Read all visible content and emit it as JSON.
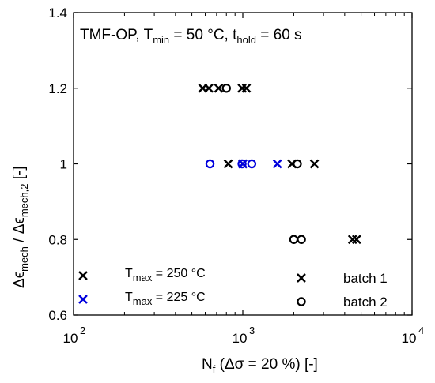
{
  "chart_data": {
    "type": "scatter",
    "annotation": {
      "prefix": "TMF-OP, T",
      "tmin_sub": "min",
      "middle": " = 50 °C, t",
      "thold_sub": "hold",
      "suffix": " = 60 s"
    },
    "xlabel": {
      "main": "N",
      "sub": "f",
      "rest": " (Δσ = 20 %) [-]"
    },
    "ylabel": {
      "d1": "Δϵ",
      "sub1": "mech",
      "slash": " / ",
      "d2": "Δϵ",
      "sub2": "mech,2",
      "unit": " [-]"
    },
    "x_scale": "log",
    "xlim": [
      100,
      10000
    ],
    "ylim": [
      0.6,
      1.4
    ],
    "x_ticks": [
      {
        "label": "10",
        "exp": "2",
        "value": 100
      },
      {
        "label": "10",
        "exp": "3",
        "value": 1000
      },
      {
        "label": "10",
        "exp": "4",
        "value": 10000
      }
    ],
    "y_ticks": [
      {
        "label": "0.6",
        "value": 0.6
      },
      {
        "label": "0.8",
        "value": 0.8
      },
      {
        "label": "1",
        "value": 1.0
      },
      {
        "label": "1.2",
        "value": 1.2
      },
      {
        "label": "1.4",
        "value": 1.4
      }
    ],
    "grid": false,
    "series": [
      {
        "tmax": "250 °C",
        "batch": "batch 1",
        "color": "#000000",
        "marker": "x",
        "points": [
          [
            580,
            1.2
          ],
          [
            630,
            1.2
          ],
          [
            720,
            1.2
          ],
          [
            990,
            1.2
          ],
          [
            1050,
            1.2
          ],
          [
            820,
            1.0
          ],
          [
            1000,
            1.0
          ],
          [
            1950,
            1.0
          ],
          [
            2650,
            1.0
          ],
          [
            4450,
            0.8
          ],
          [
            4700,
            0.8
          ]
        ]
      },
      {
        "tmax": "250 °C",
        "batch": "batch 2",
        "color": "#000000",
        "marker": "o",
        "points": [
          [
            800,
            1.2
          ],
          [
            2100,
            1.0
          ],
          [
            2000,
            0.8
          ],
          [
            2220,
            0.8
          ]
        ]
      },
      {
        "tmax": "225 °C",
        "batch": "batch 1",
        "color": "#0000dd",
        "marker": "x",
        "points": [
          [
            1000,
            1.0
          ],
          [
            1600,
            1.0
          ]
        ]
      },
      {
        "tmax": "225 °C",
        "batch": "batch 2",
        "color": "#0000dd",
        "marker": "o",
        "points": [
          [
            640,
            1.0
          ],
          [
            990,
            1.0
          ],
          [
            1130,
            1.0
          ]
        ]
      }
    ],
    "legend": {
      "placement": "bottom",
      "temperature": [
        {
          "prefix": "T",
          "sub": "max",
          "value": " = 250 °C",
          "color": "#000000",
          "marker": "x"
        },
        {
          "prefix": "T",
          "sub": "max",
          "value": " = 225 °C",
          "color": "#0000dd",
          "marker": "x"
        }
      ],
      "batch": [
        {
          "label": "batch 1",
          "color": "#000000",
          "marker": "x"
        },
        {
          "label": "batch 2",
          "color": "#000000",
          "marker": "o"
        }
      ]
    }
  }
}
